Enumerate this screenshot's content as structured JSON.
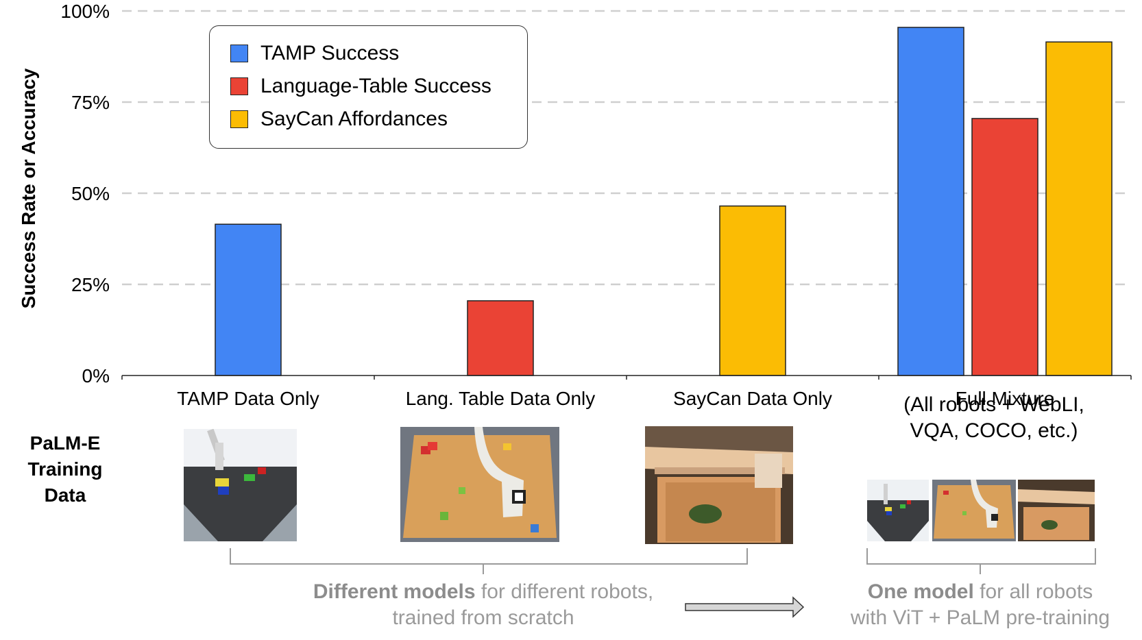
{
  "chart_data": {
    "type": "bar",
    "ylabel": "Success Rate or Accuracy",
    "ylim": [
      0,
      100
    ],
    "yticks": [
      "0%",
      "25%",
      "50%",
      "75%",
      "100%"
    ],
    "ytick_values": [
      0,
      25,
      50,
      75,
      100
    ],
    "grid": "horizontal dashed",
    "categories": [
      "TAMP Data Only",
      "Lang. Table Data Only",
      "SayCan Data Only",
      "Full Mixture"
    ],
    "series": [
      {
        "name": "TAMP Success",
        "color": "#4285F4",
        "values": [
          41.5,
          null,
          null,
          95.5
        ]
      },
      {
        "name": "Language-Table Success",
        "color": "#EA4335",
        "values": [
          null,
          20.5,
          null,
          70.5
        ]
      },
      {
        "name": "SayCan Affordances",
        "color": "#FBBC04",
        "values": [
          null,
          null,
          46.5,
          91.5
        ]
      }
    ],
    "legend_position": "top-left"
  },
  "side_label": [
    "PaLM-E",
    "Training",
    "Data"
  ],
  "full_mixture_detail": [
    "(All robots + WebLI,",
    "VQA, COCO, etc.)"
  ],
  "captions": {
    "left_bold": "Different models",
    "left_rest": " for different robots,",
    "left_line2": "trained from scratch",
    "right_bold": "One model",
    "right_rest": " for all robots",
    "right_line2": "with ViT + PaLM pre-training"
  },
  "thumbnails": [
    "tamp-sim-scene",
    "language-table-scene",
    "saycan-drawer-scene"
  ]
}
